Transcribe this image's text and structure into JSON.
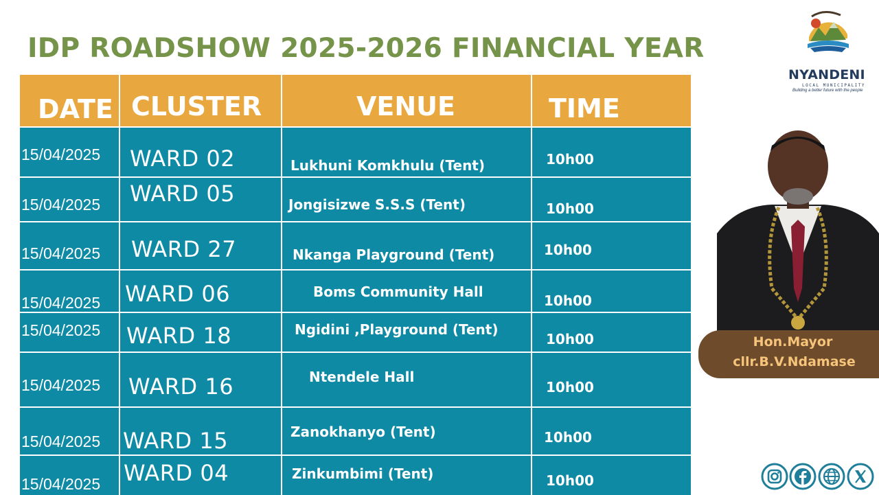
{
  "title": "IDP ROADSHOW 2025-2026 FINANCIAL YEAR",
  "table": {
    "headers": [
      "DATE",
      "CLUSTER",
      "VENUE",
      "TIME"
    ],
    "rows": [
      {
        "date": "15/04/2025",
        "ward": "WARD 02",
        "venue": "Lukhuni Komkhulu (Tent)",
        "time": "10h00"
      },
      {
        "date": "15/04/2025",
        "ward": "WARD 05",
        "venue": "Jongisizwe S.S.S (Tent)",
        "time": "10h00"
      },
      {
        "date": "15/04/2025",
        "ward": "WARD 27",
        "venue": "Nkanga Playground (Tent)",
        "time": "10h00"
      },
      {
        "date": "15/04/2025",
        "ward": "WARD 06",
        "venue": "Boms Community Hall",
        "time": "10h00"
      },
      {
        "date": "15/04/2025",
        "ward": "WARD 18",
        "venue": "Ngidini ,Playground (Tent)",
        "time": "10h00"
      },
      {
        "date": "15/04/2025",
        "ward": "WARD 16",
        "venue": "Ntendele Hall",
        "time": "10h00"
      },
      {
        "date": "15/04/2025",
        "ward": "WARD 15",
        "venue": "Zanokhanyo (Tent)",
        "time": "10h00"
      },
      {
        "date": "15/04/2025",
        "ward": "WARD 04",
        "venue": "Zinkumbimi (Tent)",
        "time": "10h00"
      }
    ]
  },
  "logo": {
    "name": "NYANDENI",
    "subtitle": "LOCAL MUNICIPALITY",
    "slogan": "Building a better future with the people"
  },
  "mayor": {
    "title": "Hon.Mayor",
    "name": "cllr.B.V.Ndamase"
  },
  "socials": [
    "instagram-icon",
    "facebook-icon",
    "globe-icon",
    "x-icon"
  ],
  "colors": {
    "title": "#76934a",
    "header": "#e9a83f",
    "row": "#0f8aa5",
    "mayor_plate": "#6e4b2a",
    "mayor_text": "#f6c47a",
    "social": "#1f7f9a"
  }
}
